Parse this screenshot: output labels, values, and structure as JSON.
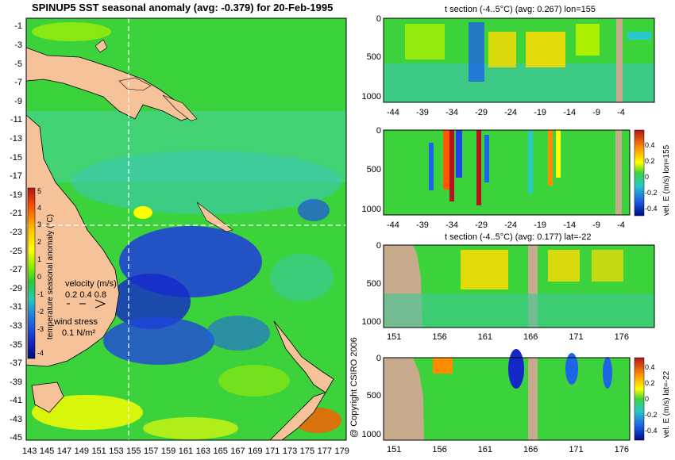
{
  "map": {
    "title": "SPINUP5 SST seasonal anomaly (avg: -0.379) for 20-Feb-1995",
    "lat_labels": [
      "-1",
      "-3",
      "-5",
      "-7",
      "-9",
      "-11",
      "-13",
      "-15",
      "-17",
      "-19",
      "-21",
      "-23",
      "-25",
      "-27",
      "-29",
      "-31",
      "-33",
      "-35",
      "-37",
      "-39",
      "-41",
      "-43",
      "-45"
    ],
    "lon_labels": [
      "143",
      "145",
      "147",
      "149",
      "151",
      "153",
      "155",
      "157",
      "159",
      "161",
      "163",
      "165",
      "167",
      "169",
      "171",
      "173",
      "175",
      "177",
      "179"
    ],
    "colorbar_label": "temperature seasonal anomaly (°C)",
    "colorbar_ticks": [
      "5",
      "4",
      "3",
      "2",
      "1",
      "0",
      "-1",
      "-2",
      "-3",
      "-4"
    ],
    "velocity_label": "velocity (m/s)",
    "velocity_scale": "0.2 0.4 0.8",
    "wind_label": "wind stress",
    "wind_scale": "0.1 N/m²",
    "section_lon": 155,
    "section_lat": -22,
    "colors": {
      "land": "#f5c29a",
      "warm": "#ffff00",
      "cool": "#1e3cdc",
      "mid": "#3cd23c"
    }
  },
  "copyright": "@ Copyright CSIRO 2006",
  "panels": [
    {
      "title": "t section (-4..5°C) (avg: 0.267) lon=155",
      "x_ticks": [
        "-44",
        "-39",
        "-34",
        "-29",
        "-24",
        "-19",
        "-14",
        "-9",
        "-4"
      ],
      "y_ticks": [
        "0",
        "500",
        "1000"
      ]
    },
    {
      "title": "",
      "x_ticks": [
        "-44",
        "-39",
        "-34",
        "-29",
        "-24",
        "-19",
        "-14",
        "-9",
        "-4"
      ],
      "y_ticks": [
        "0",
        "500",
        "1000"
      ],
      "colorbar_label": "vel. E (m/s) lon=155",
      "colorbar_ticks": [
        "0.4",
        "0.2",
        "0",
        "-0.2",
        "-0.4"
      ]
    },
    {
      "title": "t section (-4..5°C) (avg: 0.177) lat=-22",
      "x_ticks": [
        "151",
        "156",
        "161",
        "166",
        "171",
        "176"
      ],
      "y_ticks": [
        "0",
        "500",
        "1000"
      ]
    },
    {
      "title": "",
      "x_ticks": [
        "151",
        "156",
        "161",
        "166",
        "171",
        "176"
      ],
      "y_ticks": [
        "0",
        "500",
        "1000"
      ],
      "colorbar_label": "vel. E (m/s) lat=-22",
      "colorbar_ticks": [
        "0.4",
        "0.2",
        "0",
        "-0.2",
        "-0.4"
      ]
    }
  ]
}
